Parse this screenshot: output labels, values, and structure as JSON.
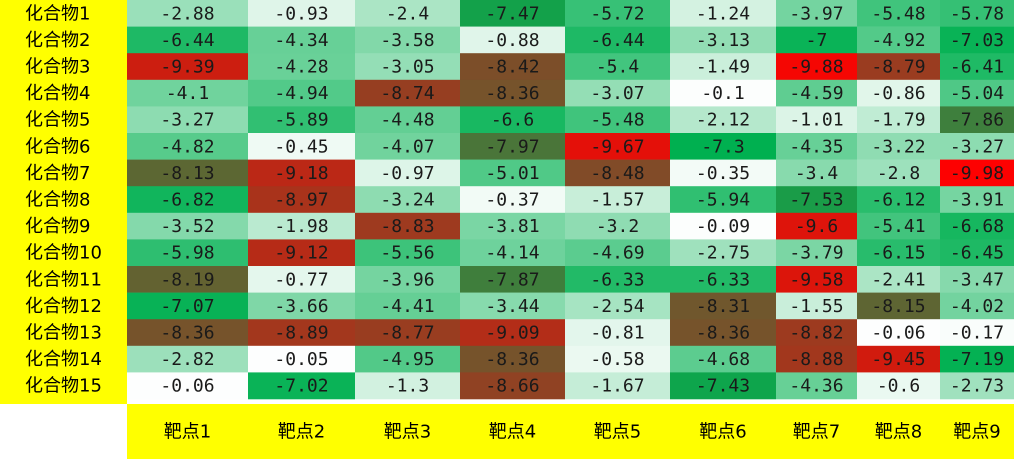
{
  "chart_data": {
    "type": "heatmap",
    "title": "",
    "rows": [
      "化合物1",
      "化合物2",
      "化合物3",
      "化合物4",
      "化合物5",
      "化合物6",
      "化合物7",
      "化合物8",
      "化合物9",
      "化合物10",
      "化合物11",
      "化合物12",
      "化合物13",
      "化合物14",
      "化合物15"
    ],
    "columns": [
      "靶点1",
      "靶点2",
      "靶点3",
      "靶点4",
      "靶点5",
      "靶点6",
      "靶点7",
      "靶点8",
      "靶点9"
    ],
    "values": [
      [
        "-2.88",
        "-0.93",
        "-2.4",
        "-7.47",
        "-5.72",
        "-1.24",
        "-3.97",
        "-5.48",
        "-5.78"
      ],
      [
        "-6.44",
        "-4.34",
        "-3.58",
        "-0.88",
        "-6.44",
        "-3.13",
        "-7",
        "-4.92",
        "-7.03"
      ],
      [
        "-9.39",
        "-4.28",
        "-3.05",
        "-8.42",
        "-5.4",
        "-1.49",
        "-9.88",
        "-8.79",
        "-6.41"
      ],
      [
        "-4.1",
        "-4.94",
        "-8.74",
        "-8.36",
        "-3.07",
        "-0.1",
        "-4.59",
        "-0.86",
        "-5.04"
      ],
      [
        "-3.27",
        "-5.89",
        "-4.48",
        "-6.6",
        "-5.48",
        "-2.12",
        "-1.01",
        "-1.79",
        "-7.86"
      ],
      [
        "-4.82",
        "-0.45",
        "-4.07",
        "-7.97",
        "-9.67",
        "-7.3",
        "-4.35",
        "-3.22",
        "-3.27"
      ],
      [
        "-8.13",
        "-9.18",
        "-0.97",
        "-5.01",
        "-8.48",
        "-0.35",
        "-3.4",
        "-2.8",
        "-9.98"
      ],
      [
        "-6.82",
        "-8.97",
        "-3.24",
        "-0.37",
        "-1.57",
        "-5.94",
        "-7.53",
        "-6.12",
        "-3.91"
      ],
      [
        "-3.52",
        "-1.98",
        "-8.83",
        "-3.81",
        "-3.2",
        "-0.09",
        "-9.6",
        "-5.41",
        "-6.68"
      ],
      [
        "-5.98",
        "-9.12",
        "-5.56",
        "-4.14",
        "-4.69",
        "-2.75",
        "-3.79",
        "-6.15",
        "-6.45"
      ],
      [
        "-8.19",
        "-0.77",
        "-3.96",
        "-7.87",
        "-6.33",
        "-6.33",
        "-9.58",
        "-2.41",
        "-3.47"
      ],
      [
        "-7.07",
        "-3.66",
        "-4.41",
        "-3.44",
        "-2.54",
        "-8.31",
        "-1.55",
        "-8.15",
        "-4.02"
      ],
      [
        "-8.36",
        "-8.89",
        "-8.77",
        "-9.09",
        "-0.81",
        "-8.36",
        "-8.82",
        "-0.06",
        "-0.17"
      ],
      [
        "-2.82",
        "-0.05",
        "-4.95",
        "-8.36",
        "-0.58",
        "-4.68",
        "-8.88",
        "-9.45",
        "-7.19"
      ],
      [
        "-0.06",
        "-7.02",
        "-1.3",
        "-8.66",
        "-1.67",
        "-7.43",
        "-4.36",
        "-0.6",
        "-2.73"
      ]
    ],
    "color_scale": {
      "stops": [
        {
          "value": 0,
          "color": "#ffffff"
        },
        {
          "value": -7.3,
          "color": "#00b050"
        },
        {
          "value": -8.4,
          "color": "#7a4f2a"
        },
        {
          "value": -10,
          "color": "#ff0000"
        }
      ]
    },
    "label_background": "#ffff00"
  }
}
